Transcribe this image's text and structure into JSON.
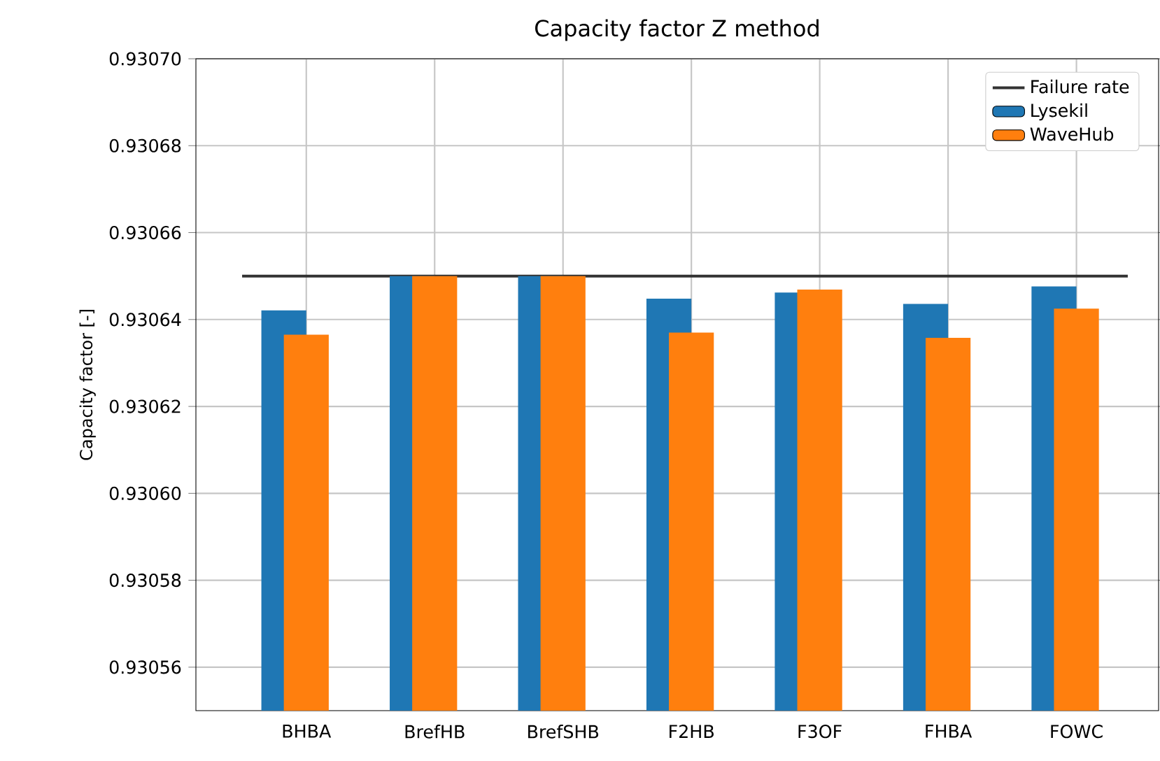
{
  "chart_data": {
    "type": "bar",
    "title": "Capacity factor Z method",
    "ylabel": "Capacity factor [-]",
    "categories": [
      "BHBA",
      "BrefHB",
      "BrefSHB",
      "F2HB",
      "F3OF",
      "FHBA",
      "FOWC"
    ],
    "series": [
      {
        "name": "Lysekil",
        "color": "#1f77b4",
        "values": [
          0.9306421,
          0.93065,
          0.93065,
          0.9306448,
          0.9306462,
          0.9306436,
          0.9306476
        ]
      },
      {
        "name": "WaveHub",
        "color": "#ff7f0e",
        "values": [
          0.9306365,
          0.93065,
          0.93065,
          0.930637,
          0.9306469,
          0.9306358,
          0.9306425
        ]
      }
    ],
    "ref_lines": [
      {
        "axis": "y",
        "value": 0.93065,
        "label": "Failure rate",
        "color": "#333333"
      }
    ],
    "ylim": [
      0.93055,
      0.9307
    ],
    "yticks": [
      {
        "value": 0.93056,
        "label": "0.93056"
      },
      {
        "value": 0.93058,
        "label": "0.93058"
      },
      {
        "value": 0.9306,
        "label": "0.93060"
      },
      {
        "value": 0.93062,
        "label": "0.93062"
      },
      {
        "value": 0.93064,
        "label": "0.93064"
      },
      {
        "value": 0.93066,
        "label": "0.93066"
      },
      {
        "value": 0.93068,
        "label": "0.93068"
      },
      {
        "value": 0.9307,
        "label": "0.93070"
      }
    ],
    "grid": true,
    "legend": "top right"
  }
}
